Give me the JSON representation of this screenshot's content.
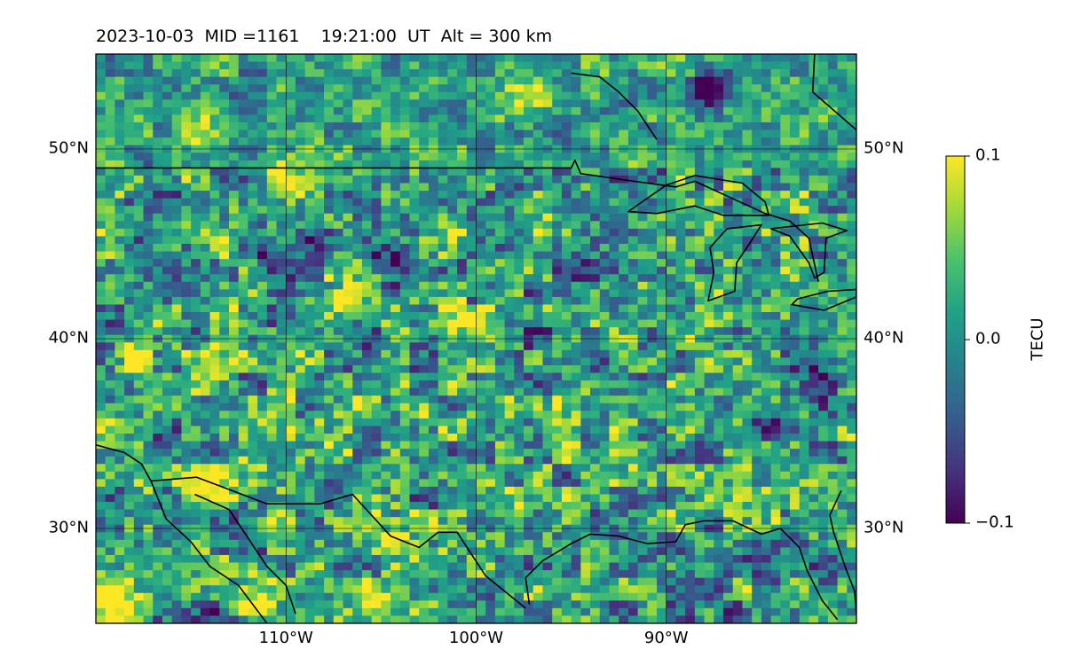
{
  "title": "2023-10-03  MID =1161    19:21:00  UT  Alt = 300 km",
  "chart_data": {
    "type": "heatmap",
    "map_extent": {
      "lon": [
        -120,
        -80
      ],
      "lat": [
        25,
        55
      ]
    },
    "lat_ticks": [
      {
        "value": 50,
        "label": "50°N"
      },
      {
        "value": 40,
        "label": "40°N"
      },
      {
        "value": 30,
        "label": "30°N"
      }
    ],
    "lon_ticks": [
      {
        "value": -110,
        "label": "110°W"
      },
      {
        "value": -100,
        "label": "100°W"
      },
      {
        "value": -90,
        "label": "90°W"
      }
    ],
    "grid": true,
    "colorbar": {
      "label": "TECU",
      "range": [
        -0.1,
        0.1
      ],
      "ticks": [
        {
          "value": 0.1,
          "label": "0.1"
        },
        {
          "value": 0.0,
          "label": "0.0"
        },
        {
          "value": -0.1,
          "label": "−0.1"
        }
      ],
      "colormap": [
        "#440154",
        "#46327e",
        "#365c8d",
        "#277f8e",
        "#1fa187",
        "#4ac16d",
        "#a0da39",
        "#fde725"
      ]
    },
    "features": [
      {
        "name": "us-canada-border",
        "points": [
          [
            -120,
            49
          ],
          [
            -95,
            49
          ],
          [
            -94.8,
            49.4
          ],
          [
            -94.5,
            48.7
          ],
          [
            -91,
            48.2
          ],
          [
            -89.5,
            48
          ],
          [
            -88.5,
            48.3
          ],
          [
            -84.8,
            46.6
          ],
          [
            -83.5,
            46.2
          ],
          [
            -82.5,
            45.3
          ],
          [
            -82,
            43
          ]
        ]
      },
      {
        "name": "gulf-coast",
        "points": [
          [
            -97.2,
            26
          ],
          [
            -97.4,
            27.4
          ],
          [
            -96.5,
            28.3
          ],
          [
            -95,
            29.2
          ],
          [
            -94,
            29.7
          ],
          [
            -92.5,
            29.6
          ],
          [
            -91,
            29.2
          ],
          [
            -89.5,
            29.3
          ],
          [
            -89,
            30.2
          ],
          [
            -88,
            30.4
          ],
          [
            -86.5,
            30.4
          ],
          [
            -85,
            29.7
          ],
          [
            -84,
            30
          ],
          [
            -83,
            29
          ],
          [
            -82.6,
            27.8
          ],
          [
            -81.8,
            26.2
          ],
          [
            -81,
            25.2
          ]
        ]
      },
      {
        "name": "florida-atlantic-coast",
        "points": [
          [
            -80,
            25.5
          ],
          [
            -80.1,
            26.7
          ],
          [
            -80.6,
            28
          ],
          [
            -81.2,
            29.8
          ],
          [
            -81.4,
            30.7
          ],
          [
            -80.8,
            32
          ]
        ]
      },
      {
        "name": "mexico-border",
        "points": [
          [
            -117.1,
            32.5
          ],
          [
            -114.7,
            32.7
          ],
          [
            -111,
            31.3
          ],
          [
            -108.2,
            31.3
          ],
          [
            -106.5,
            31.8
          ],
          [
            -104.5,
            29.6
          ],
          [
            -103,
            29
          ],
          [
            -102,
            29.8
          ],
          [
            -101,
            29.8
          ],
          [
            -99.5,
            27.5
          ],
          [
            -97.4,
            25.8
          ]
        ]
      },
      {
        "name": "pacific-coast",
        "points": [
          [
            -120,
            34.4
          ],
          [
            -118.5,
            34
          ],
          [
            -117.6,
            33.4
          ],
          [
            -117.1,
            32.5
          ],
          [
            -116.3,
            30.5
          ],
          [
            -115,
            29.3
          ],
          [
            -114,
            28
          ],
          [
            -112.5,
            27
          ],
          [
            -111,
            25
          ]
        ]
      },
      {
        "name": "baja-gulf-coast",
        "points": [
          [
            -114.8,
            31.8
          ],
          [
            -113,
            31
          ],
          [
            -112,
            29.5
          ],
          [
            -111,
            28
          ],
          [
            -110,
            27
          ],
          [
            -109.5,
            25.5
          ]
        ]
      },
      {
        "name": "hudson-bay",
        "points": [
          [
            -95,
            54
          ],
          [
            -93.5,
            53.8
          ],
          [
            -92.5,
            53
          ],
          [
            -91.5,
            52
          ],
          [
            -90.5,
            50.5
          ]
        ]
      },
      {
        "name": "james-bay",
        "points": [
          [
            -82.2,
            55
          ],
          [
            -82.3,
            53
          ],
          [
            -80,
            51
          ]
        ]
      },
      {
        "name": "lake-superior",
        "closed": true,
        "points": [
          [
            -92,
            46.7
          ],
          [
            -90.5,
            46.6
          ],
          [
            -88.5,
            47
          ],
          [
            -87,
            46.5
          ],
          [
            -84.6,
            46.5
          ],
          [
            -84.8,
            47.2
          ],
          [
            -86,
            48.2
          ],
          [
            -88.5,
            48.6
          ],
          [
            -90,
            48.1
          ]
        ]
      },
      {
        "name": "lake-michigan",
        "closed": true,
        "points": [
          [
            -87.8,
            42
          ],
          [
            -87.5,
            43.5
          ],
          [
            -87.7,
            44.8
          ],
          [
            -86.8,
            45.8
          ],
          [
            -85,
            46
          ],
          [
            -85.5,
            45.2
          ],
          [
            -86.3,
            44
          ],
          [
            -86.4,
            42.5
          ]
        ]
      },
      {
        "name": "lake-huron",
        "closed": true,
        "points": [
          [
            -84.5,
            45.8
          ],
          [
            -83.5,
            45.4
          ],
          [
            -82.5,
            44
          ],
          [
            -82.2,
            43.2
          ],
          [
            -81.7,
            43.5
          ],
          [
            -81.6,
            45.3
          ],
          [
            -80.5,
            45.7
          ],
          [
            -81.8,
            46.1
          ]
        ]
      },
      {
        "name": "lake-erie",
        "closed": true,
        "points": [
          [
            -83.4,
            41.8
          ],
          [
            -81.7,
            41.5
          ],
          [
            -80,
            42.2
          ],
          [
            -80,
            42.6
          ],
          [
            -81.5,
            42.5
          ],
          [
            -83.1,
            42.1
          ]
        ]
      }
    ],
    "blobs": [
      {
        "lon": -119.4,
        "lat": 26.5,
        "value": 0.12
      },
      {
        "lon": -112,
        "lat": 26.2,
        "value": 0.12
      },
      {
        "lon": -105,
        "lat": 26.5,
        "value": 0.09
      },
      {
        "lon": -88,
        "lat": 53.3,
        "value": -0.13
      },
      {
        "lon": -92,
        "lat": 53.2,
        "value": -0.04
      },
      {
        "lon": -97.5,
        "lat": 53,
        "value": 0.07
      },
      {
        "lon": -110.5,
        "lat": 48.8,
        "value": 0.08
      },
      {
        "lon": -115,
        "lat": 50.8,
        "value": 0.07
      },
      {
        "lon": -104.4,
        "lat": 44.2,
        "value": -0.11
      },
      {
        "lon": -108.6,
        "lat": 45.5,
        "value": -0.09
      },
      {
        "lon": -110.8,
        "lat": 44.2,
        "value": -0.09
      },
      {
        "lon": -114,
        "lat": 45.7,
        "value": 0.08
      },
      {
        "lon": -118.5,
        "lat": 39,
        "value": 0.09
      },
      {
        "lon": -119.5,
        "lat": 35.5,
        "value": 0.08
      },
      {
        "lon": -114.5,
        "lat": 32.4,
        "value": 0.11
      },
      {
        "lon": -101.5,
        "lat": 41.2,
        "value": 0.07
      },
      {
        "lon": -107,
        "lat": 42.5,
        "value": 0.07
      },
      {
        "lon": -104.5,
        "lat": 30.1,
        "value": 0.09
      },
      {
        "lon": -85.3,
        "lat": 28.1,
        "value": -0.1
      },
      {
        "lon": -85.8,
        "lat": 27.3,
        "value": 0.08
      },
      {
        "lon": -87.5,
        "lat": 27.1,
        "value": -0.06
      },
      {
        "lon": -114,
        "lat": 25.3,
        "value": -0.05
      },
      {
        "lon": -101.8,
        "lat": 55,
        "value": -0.04
      },
      {
        "lon": -112,
        "lat": 53,
        "value": -0.04
      },
      {
        "lon": -96.4,
        "lat": 51.2,
        "value": -0.06
      },
      {
        "lon": -113.7,
        "lat": 39.4,
        "value": 0.07
      },
      {
        "lon": -103.2,
        "lat": 36.3,
        "value": 0.06
      },
      {
        "lon": -97.5,
        "lat": 41,
        "value": -0.05
      },
      {
        "lon": -93,
        "lat": 38.5,
        "value": -0.04
      },
      {
        "lon": -84,
        "lat": 35,
        "value": -0.04
      },
      {
        "lon": -82.5,
        "lat": 38,
        "value": -0.05
      },
      {
        "lon": -95,
        "lat": 44,
        "value": -0.03
      }
    ]
  }
}
